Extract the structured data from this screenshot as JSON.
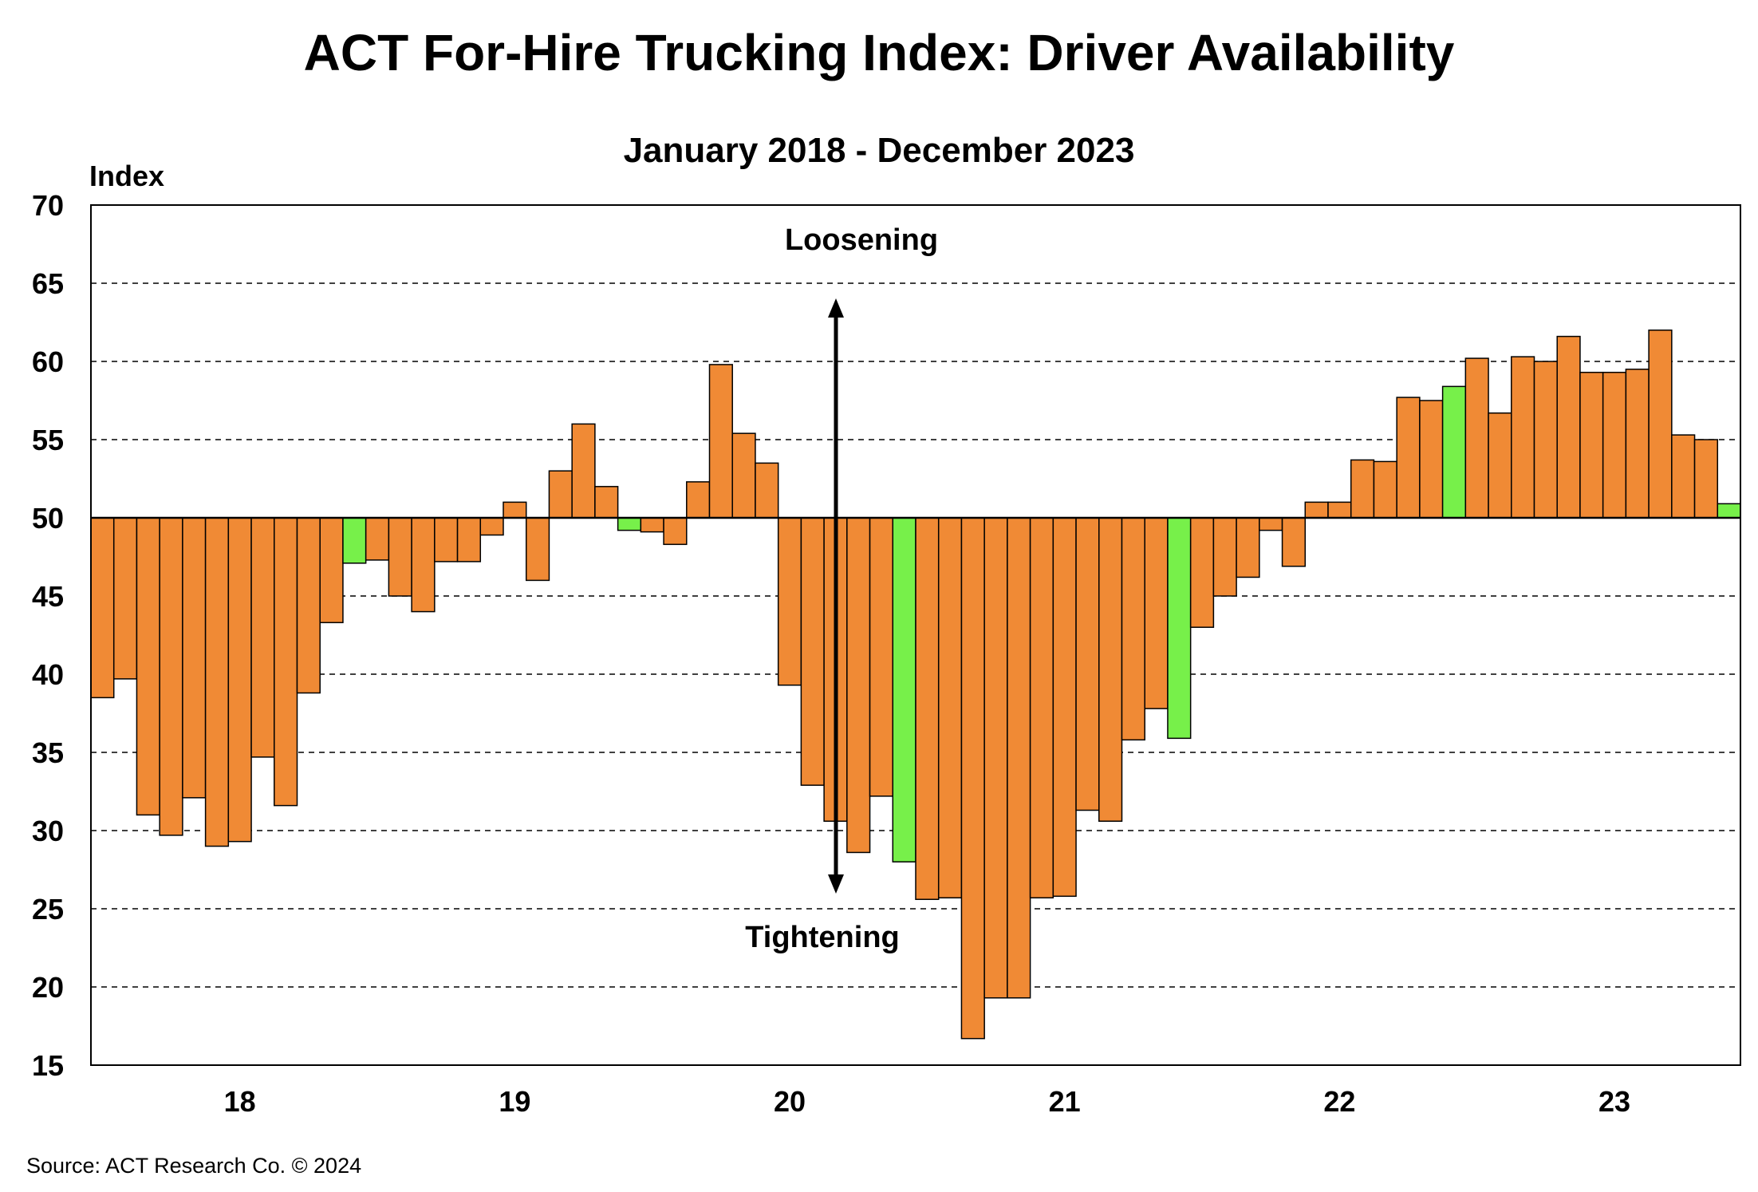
{
  "chart_data": {
    "type": "bar",
    "title": "ACT For-Hire Trucking Index: Driver Availability",
    "subtitle": "January 2018 - December 2023",
    "ylabel": "Index",
    "source": "Source:  ACT Research  Co. © 2024",
    "baseline": 50,
    "ylim": [
      15,
      70
    ],
    "yticks": [
      15,
      20,
      25,
      30,
      35,
      40,
      45,
      50,
      55,
      60,
      65,
      70
    ],
    "grid": true,
    "x_tick_labels": [
      "18",
      "19",
      "20",
      "21",
      "22",
      "23"
    ],
    "annotations": {
      "top": "Loosening",
      "bottom": "Tightening"
    },
    "colors": {
      "orange": "#F08A35",
      "green": "#77F04A"
    },
    "values": [
      38.5,
      39.7,
      31.0,
      29.7,
      32.1,
      29.0,
      29.3,
      34.7,
      31.6,
      38.8,
      43.3,
      47.1,
      47.3,
      45.0,
      44.0,
      47.2,
      47.2,
      48.9,
      51.0,
      46.0,
      53.0,
      56.0,
      52.0,
      49.2,
      49.1,
      48.3,
      52.3,
      59.8,
      55.4,
      53.5,
      39.3,
      32.9,
      30.6,
      28.6,
      32.2,
      28.0,
      25.6,
      25.7,
      16.7,
      19.3,
      19.3,
      25.7,
      25.8,
      31.3,
      30.6,
      35.8,
      37.8,
      35.9,
      43.0,
      45.0,
      46.2,
      49.2,
      46.9,
      51.0,
      51.0,
      53.7,
      53.6,
      57.7,
      57.5,
      58.4,
      60.2,
      56.7,
      60.3,
      60.0,
      61.6,
      59.3,
      59.3,
      59.5,
      62.0,
      55.3,
      55.0,
      50.9
    ],
    "series_colors": [
      "orange",
      "orange",
      "orange",
      "orange",
      "orange",
      "orange",
      "orange",
      "orange",
      "orange",
      "orange",
      "orange",
      "green",
      "orange",
      "orange",
      "orange",
      "orange",
      "orange",
      "orange",
      "orange",
      "orange",
      "orange",
      "orange",
      "orange",
      "green",
      "orange",
      "orange",
      "orange",
      "orange",
      "orange",
      "orange",
      "orange",
      "orange",
      "orange",
      "orange",
      "orange",
      "green",
      "orange",
      "orange",
      "orange",
      "orange",
      "orange",
      "orange",
      "orange",
      "orange",
      "orange",
      "orange",
      "orange",
      "green",
      "orange",
      "orange",
      "orange",
      "orange",
      "orange",
      "orange",
      "orange",
      "orange",
      "orange",
      "orange",
      "orange",
      "green",
      "orange",
      "orange",
      "orange",
      "orange",
      "orange",
      "orange",
      "orange",
      "orange",
      "orange",
      "orange",
      "orange",
      "green"
    ]
  }
}
